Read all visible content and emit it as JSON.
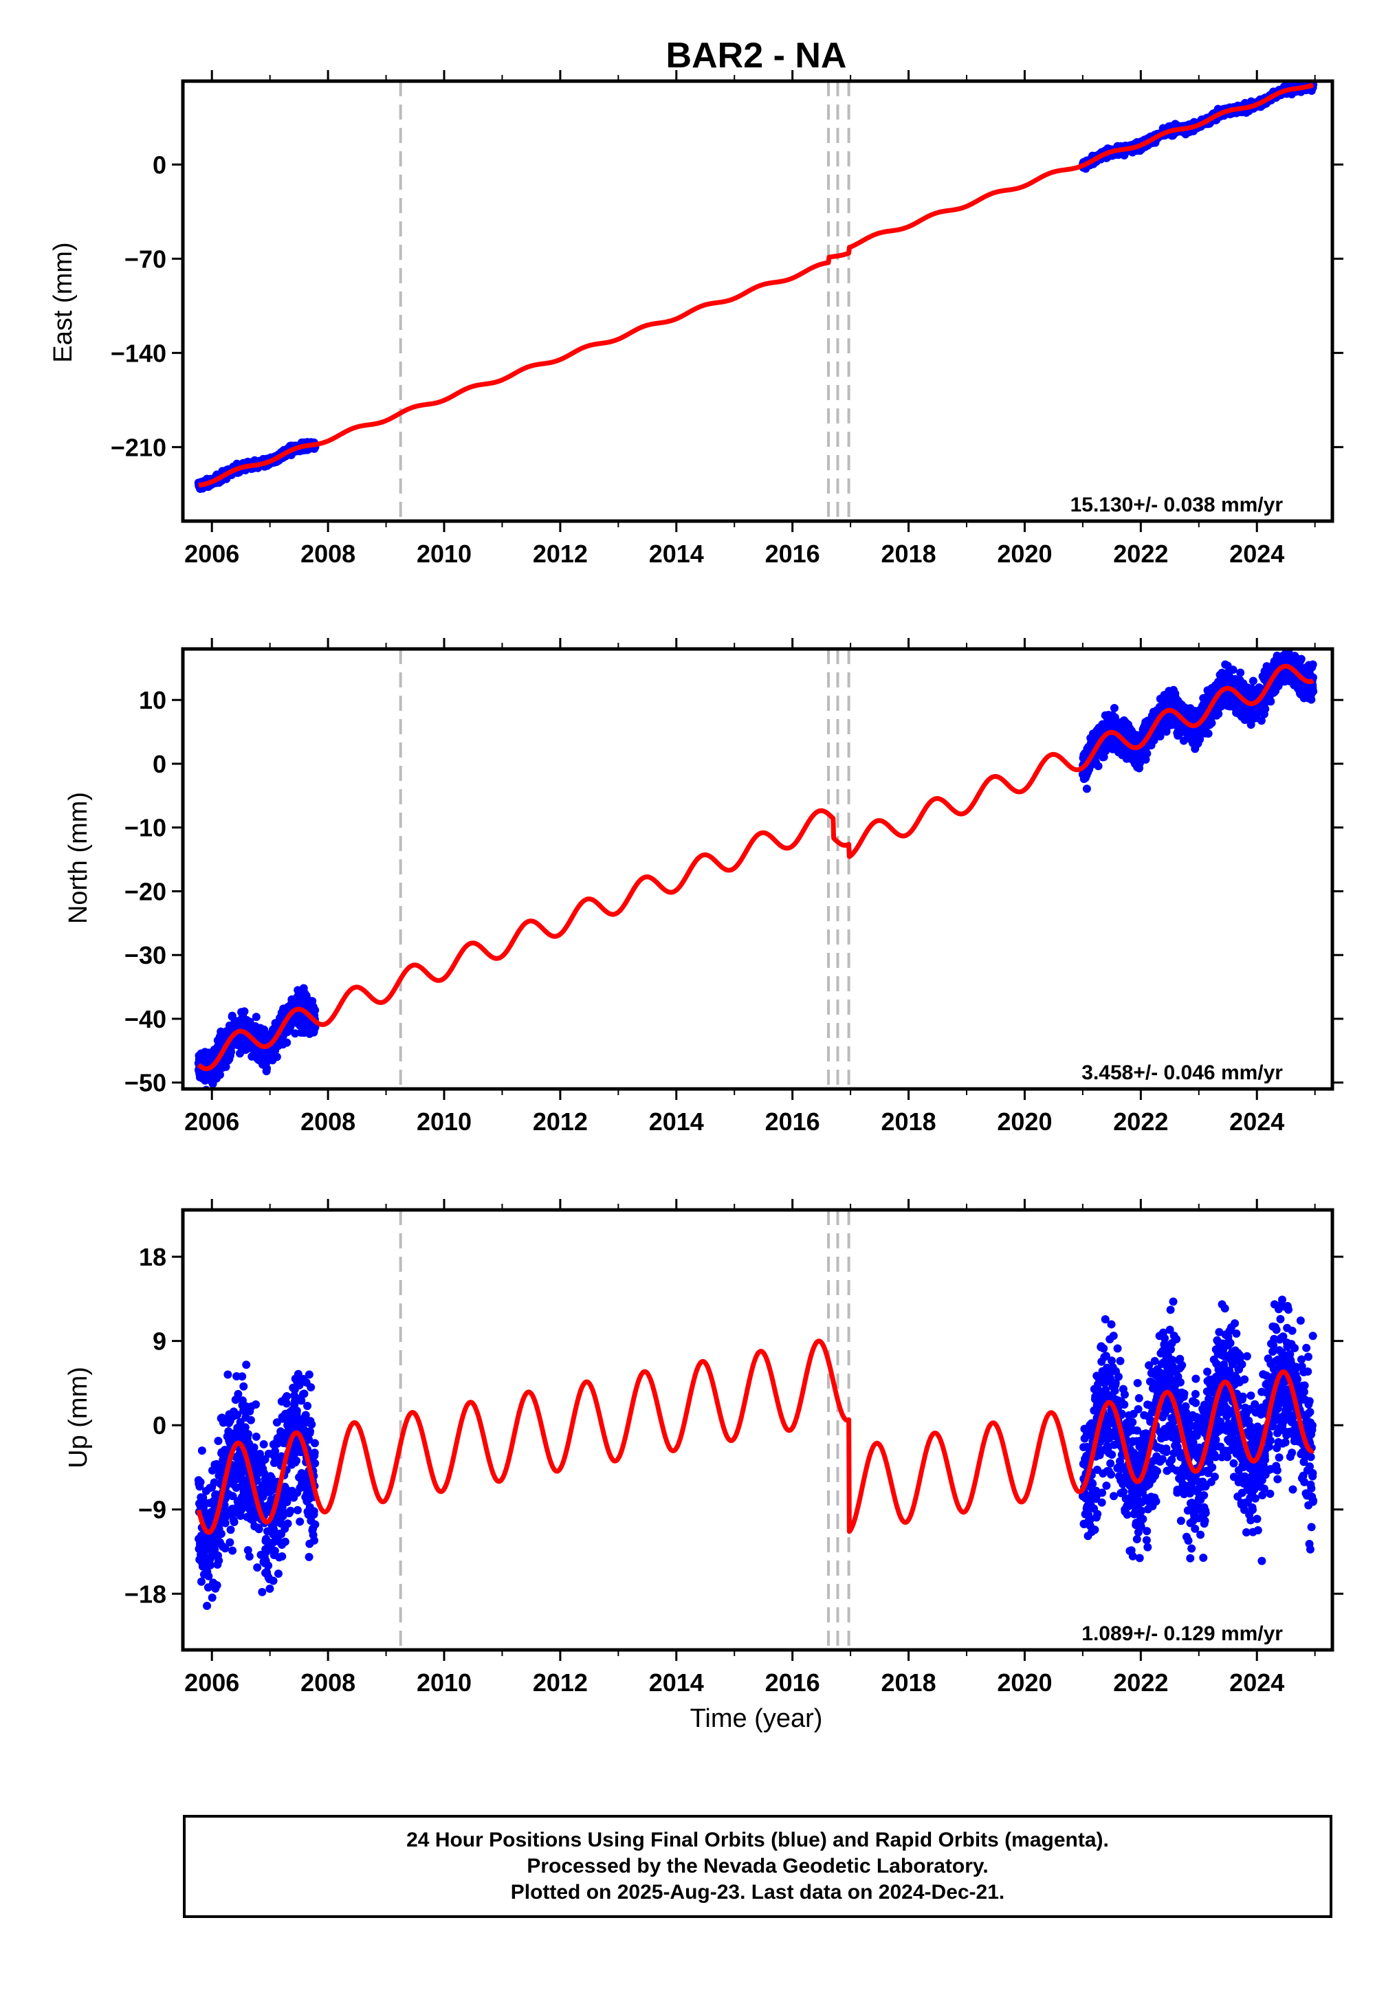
{
  "title": "BAR2 - NA",
  "xlabel": "Time (year)",
  "colors": {
    "final_orbits": "#0000ff",
    "model": "#ff0000",
    "offsets": "#bbbbbb",
    "frame": "#000000"
  },
  "footer": {
    "line1": "24 Hour Positions Using Final Orbits (blue) and Rapid Orbits (magenta).",
    "line2": "Processed by the Nevada Geodetic Laboratory.",
    "line3": "Plotted on 2025-Aug-23. Last data on 2024-Dec-21."
  },
  "chart_data": [
    {
      "type": "scatter",
      "title": "BAR2 - NA",
      "ylabel": "East (mm)",
      "rate_label": "15.130+/- 0.038 mm/yr",
      "xlim": [
        2005.5,
        2025.3
      ],
      "ylim": [
        -265,
        62
      ],
      "xticks": [
        2006,
        2008,
        2010,
        2012,
        2014,
        2016,
        2018,
        2020,
        2022,
        2024
      ],
      "yticks": [
        0,
        -70,
        -140,
        -210
      ],
      "offsets": [
        2009.25,
        2016.62,
        2016.78,
        2016.97
      ],
      "segments": [
        [
          2005.77,
          2007.78
        ],
        [
          2021.0,
          2024.97
        ]
      ],
      "series": [
        {
          "role": "data",
          "kind": "points",
          "trend": {
            "slope": 15.13,
            "at_2016": -83
          },
          "noise_mm": 2.0
        },
        {
          "role": "model",
          "kind": "line",
          "trend": {
            "slope": 15.13,
            "at_2016": -83
          },
          "seasonal_amp_mm": 1.5,
          "steps": [
            {
              "at": 2016.62,
              "jump": 4
            },
            {
              "at": 2016.97,
              "jump": 4
            }
          ]
        }
      ]
    },
    {
      "type": "scatter",
      "ylabel": "North (mm)",
      "rate_label": "3.458+/- 0.046 mm/yr",
      "xlim": [
        2005.5,
        2025.3
      ],
      "ylim": [
        -51,
        18
      ],
      "xticks": [
        2006,
        2008,
        2010,
        2012,
        2014,
        2016,
        2018,
        2020,
        2022,
        2024
      ],
      "yticks": [
        10,
        0,
        -10,
        -20,
        -30,
        -40,
        -50
      ],
      "offsets": [
        2009.25,
        2016.62,
        2016.78,
        2016.97
      ],
      "segments": [
        [
          2005.77,
          2007.78
        ],
        [
          2021.0,
          2024.97
        ]
      ],
      "series": [
        {
          "role": "data",
          "kind": "points",
          "trend": {
            "slope": 3.458,
            "at_2016": -11
          },
          "noise_mm": 2.0
        },
        {
          "role": "model",
          "kind": "line",
          "trend": {
            "slope": 3.458,
            "at_2016": -11
          },
          "seasonal_amp_mm": 2.0,
          "steps": [
            {
              "at": 2016.7,
              "jump": -3
            },
            {
              "at": 2016.97,
              "jump": -2
            }
          ]
        }
      ]
    },
    {
      "type": "scatter",
      "ylabel": "Up (mm)",
      "rate_label": "1.089+/- 0.129 mm/yr",
      "xlim": [
        2005.5,
        2025.3
      ],
      "ylim": [
        -24,
        23
      ],
      "xticks": [
        2006,
        2008,
        2010,
        2012,
        2014,
        2016,
        2018,
        2020,
        2022,
        2024
      ],
      "yticks": [
        18,
        9,
        0,
        -9,
        -18
      ],
      "offsets": [
        2009.25,
        2016.62,
        2016.78,
        2016.97
      ],
      "segments": [
        [
          2005.77,
          2007.78
        ],
        [
          2021.0,
          2024.97
        ]
      ],
      "series": [
        {
          "role": "data",
          "kind": "points",
          "trend": {
            "slope": 1.089,
            "at_2016": 4
          },
          "noise_mm": 5.5
        },
        {
          "role": "model",
          "kind": "line",
          "trend": {
            "slope": 1.089,
            "at_2016": 4
          },
          "seasonal_amp_mm": 4.5,
          "steps": [
            {
              "at": 2016.97,
              "jump": -12
            }
          ]
        }
      ]
    }
  ]
}
